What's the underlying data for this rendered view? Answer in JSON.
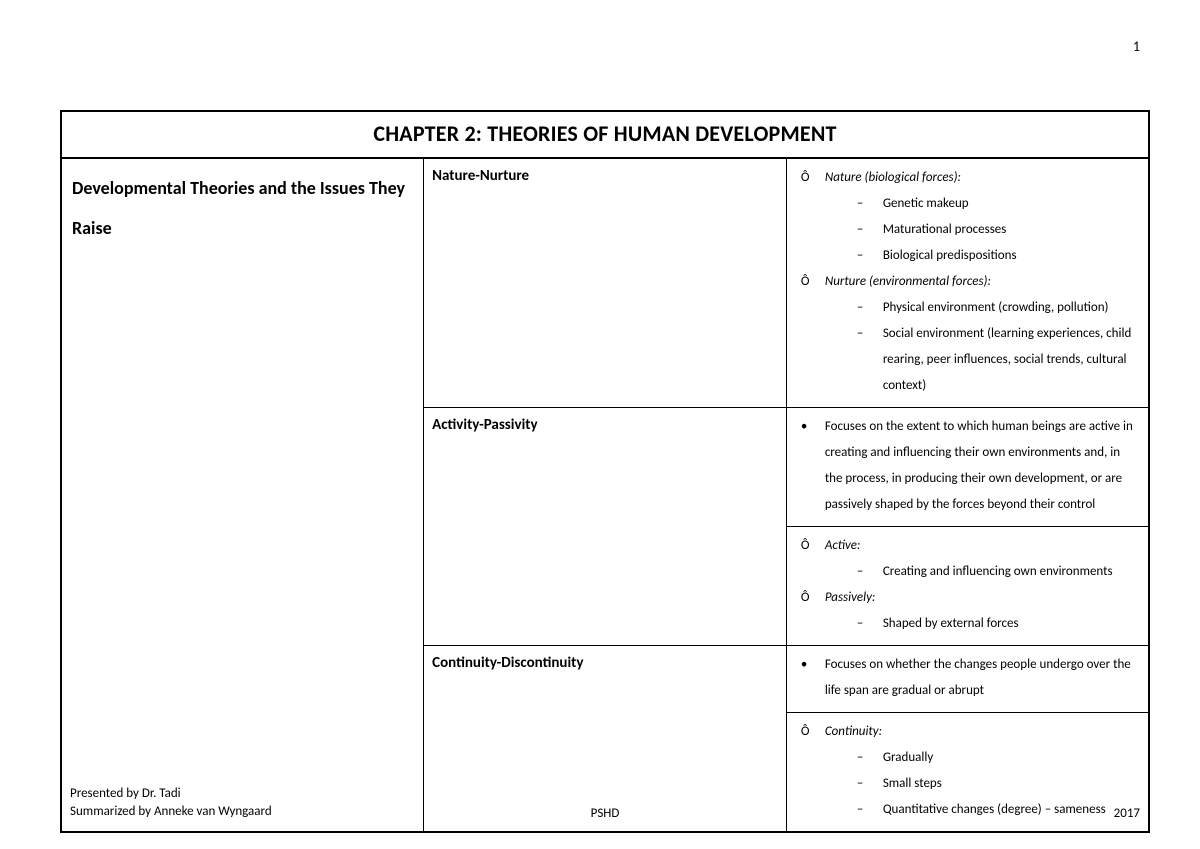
{
  "page_number": "1",
  "title": "CHAPTER 2: THEORIES OF HUMAN DEVELOPMENT",
  "section_heading": "Developmental Theories and the Issues They Raise",
  "bullet_marks": {
    "circle": "Ô",
    "dot": "•",
    "dash": "–"
  },
  "rows": [
    {
      "topic": "Nature-Nurture",
      "blocks": [
        {
          "items": [
            {
              "level": 1,
              "mark": "circle",
              "text": "Nature (biological forces):",
              "italic": true
            },
            {
              "level": 2,
              "mark": "dash",
              "text": "Genetic makeup"
            },
            {
              "level": 2,
              "mark": "dash",
              "text": "Maturational processes"
            },
            {
              "level": 2,
              "mark": "dash",
              "text": "Biological predispositions"
            },
            {
              "level": 1,
              "mark": "circle",
              "text": "Nurture (environmental forces):",
              "italic": true
            },
            {
              "level": 2,
              "mark": "dash",
              "text": "Physical environment (crowding, pollution)"
            },
            {
              "level": 2,
              "mark": "dash",
              "text": "Social environment (learning experiences, child rearing, peer influences, social trends, cultural context)"
            }
          ]
        }
      ]
    },
    {
      "topic": "Activity-Passivity",
      "blocks": [
        {
          "items": [
            {
              "level": 1,
              "mark": "dot",
              "text": "Focuses on the extent to which human beings are active in creating and influencing their own environments and, in the process, in producing their own development, or are passively shaped by the forces beyond their control"
            }
          ]
        },
        {
          "items": [
            {
              "level": 1,
              "mark": "circle",
              "text": "Active:",
              "italic": true
            },
            {
              "level": 2,
              "mark": "dash",
              "text": "Creating and influencing own environments"
            },
            {
              "level": 1,
              "mark": "circle",
              "text": "Passively:",
              "italic": true
            },
            {
              "level": 2,
              "mark": "dash",
              "text": "Shaped by external forces"
            }
          ]
        }
      ]
    },
    {
      "topic": "Continuity-Discontinuity",
      "blocks": [
        {
          "items": [
            {
              "level": 1,
              "mark": "dot",
              "text": "Focuses on whether the changes people undergo over the life span are gradual or abrupt"
            }
          ]
        },
        {
          "items": [
            {
              "level": 1,
              "mark": "circle",
              "text": "Continuity:",
              "italic": true
            },
            {
              "level": 2,
              "mark": "dash",
              "text": "Gradually"
            },
            {
              "level": 2,
              "mark": "dash",
              "text": "Small steps"
            },
            {
              "level": 2,
              "mark": "dash",
              "text": "Quantitative changes (degree) – sameness"
            }
          ]
        }
      ]
    }
  ],
  "footer": {
    "presented": "Presented by Dr. Tadi",
    "summarized": "Summarized by Anneke van Wyngaard",
    "center": "PSHD",
    "year": "2017"
  }
}
